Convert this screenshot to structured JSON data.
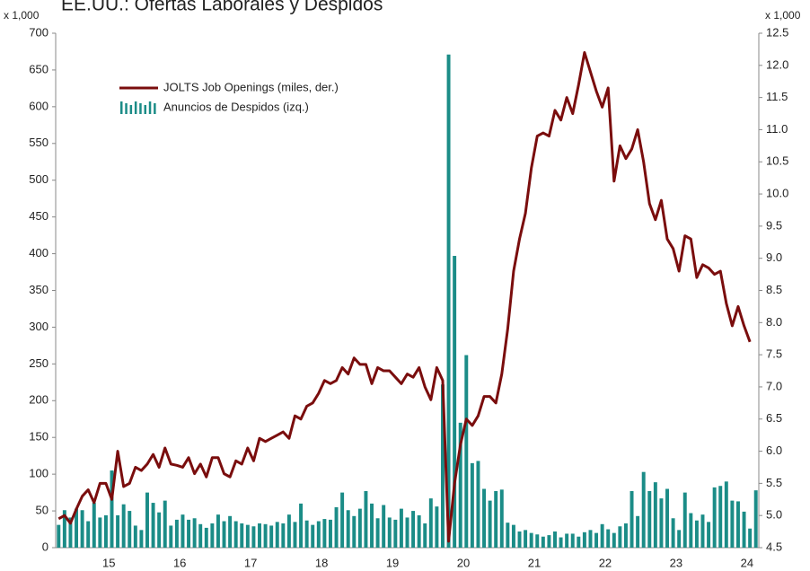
{
  "chart_data": {
    "type": "bar_line",
    "title": "EE.UU.:  Ofertas Laborales y Despidos",
    "y_unit_label": "x 1,000",
    "y2_unit_label": "x 1,000",
    "categories": [
      null,
      null,
      null,
      null,
      null,
      null,
      null,
      null,
      null,
      "15",
      null,
      null,
      null,
      null,
      null,
      null,
      null,
      null,
      null,
      null,
      null,
      "16",
      null,
      null,
      null,
      null,
      null,
      null,
      null,
      null,
      null,
      null,
      null,
      "17",
      null,
      null,
      null,
      null,
      null,
      null,
      null,
      null,
      null,
      null,
      null,
      "18",
      null,
      null,
      null,
      null,
      null,
      null,
      null,
      null,
      null,
      null,
      null,
      "19",
      null,
      null,
      null,
      null,
      null,
      null,
      null,
      null,
      null,
      null,
      null,
      "20",
      null,
      null,
      null,
      null,
      null,
      null,
      null,
      null,
      null,
      null,
      null,
      "21",
      null,
      null,
      null,
      null,
      null,
      null,
      null,
      null,
      null,
      null,
      null,
      "22",
      null,
      null,
      null,
      null,
      null,
      null,
      null,
      null,
      null,
      null,
      null,
      "23",
      null,
      null,
      null,
      null,
      null,
      null,
      null,
      null,
      null,
      null,
      null,
      "24",
      null
    ],
    "series": [
      {
        "name": "Anuncios de Despidos (izq.)",
        "kind": "bar",
        "color": "#1b8c87",
        "values": [
          31,
          51,
          41,
          53,
          51,
          36,
          61,
          41,
          44,
          105,
          44,
          59,
          50,
          30,
          24,
          75,
          61,
          48,
          64,
          30,
          38,
          45,
          38,
          40,
          32,
          27,
          33,
          45,
          36,
          43,
          36,
          33,
          31,
          29,
          33,
          32,
          30,
          35,
          33,
          45,
          35,
          60,
          37,
          31,
          36,
          39,
          38,
          55,
          75,
          51,
          43,
          53,
          77,
          60,
          40,
          58,
          41,
          38,
          53,
          41,
          50,
          44,
          33,
          67,
          56,
          222,
          671,
          397,
          170,
          262,
          115,
          118,
          80,
          64,
          77,
          79,
          34,
          31,
          22,
          24,
          20,
          18,
          15,
          17,
          22,
          14,
          19,
          19,
          15,
          21,
          24,
          20,
          32,
          25,
          20,
          29,
          33,
          77,
          43,
          103,
          77,
          89,
          67,
          80,
          40,
          24,
          75,
          47,
          37,
          45,
          35,
          82,
          84,
          90,
          64,
          63,
          49,
          26,
          78
        ]
      },
      {
        "name": "JOLTS Job Openings (miles, der.)",
        "kind": "line",
        "axis": "y2",
        "color": "#7a0d0d",
        "values": [
          4.95,
          5.0,
          4.88,
          5.1,
          5.3,
          5.4,
          5.2,
          5.5,
          5.5,
          5.25,
          6.0,
          5.45,
          5.5,
          5.75,
          5.7,
          5.8,
          5.95,
          5.75,
          6.05,
          5.8,
          5.78,
          5.75,
          5.9,
          5.65,
          5.8,
          5.6,
          5.9,
          5.9,
          5.65,
          5.6,
          5.85,
          5.8,
          6.05,
          5.85,
          6.2,
          6.15,
          6.2,
          6.25,
          6.3,
          6.2,
          6.55,
          6.5,
          6.7,
          6.75,
          6.9,
          7.1,
          7.05,
          7.1,
          7.3,
          7.2,
          7.45,
          7.35,
          7.35,
          7.05,
          7.3,
          7.25,
          7.25,
          7.15,
          7.05,
          7.2,
          7.15,
          7.3,
          7.0,
          6.8,
          7.3,
          7.1,
          4.6,
          5.5,
          6.1,
          6.5,
          6.4,
          6.55,
          6.85,
          6.85,
          6.75,
          7.2,
          7.9,
          8.8,
          9.3,
          9.7,
          10.4,
          10.9,
          10.95,
          10.9,
          11.3,
          11.15,
          11.5,
          11.25,
          11.7,
          12.2,
          11.9,
          11.6,
          11.35,
          11.65,
          10.2,
          10.75,
          10.55,
          10.7,
          11.0,
          10.5,
          9.85,
          9.6,
          9.9,
          9.3,
          9.15,
          8.8,
          9.35,
          9.3,
          8.7,
          8.9,
          8.85,
          8.75,
          8.8,
          8.3,
          7.95,
          8.25,
          7.95,
          7.7,
          null
        ]
      }
    ],
    "ylim": [
      0,
      700
    ],
    "yticks": [
      0,
      50,
      100,
      150,
      200,
      250,
      300,
      350,
      400,
      450,
      500,
      550,
      600,
      650,
      700
    ],
    "y2lim": [
      4.5,
      12.5
    ],
    "y2ticks": [
      4.5,
      {
        "value": 5,
        "label": "5.0"
      },
      5.5,
      {
        "value": 6,
        "label": "6.0"
      },
      6.5,
      {
        "value": 7,
        "label": "7.0"
      },
      7.5,
      {
        "value": 8,
        "label": "8.0"
      },
      8.5,
      {
        "value": 9,
        "label": "9.0"
      },
      9.5,
      {
        "value": 10,
        "label": "10.0"
      },
      10.5,
      {
        "value": 11,
        "label": "11.0"
      },
      11.5,
      {
        "value": 12,
        "label": "12.0"
      },
      12.5
    ],
    "legend": "upper left"
  }
}
